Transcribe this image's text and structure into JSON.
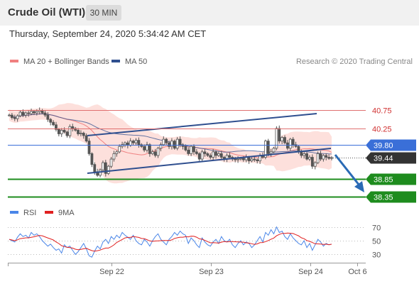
{
  "header": {
    "title": "Crude Oil (WTI)",
    "period": "30 MIN",
    "datetime": "Thursday, September 24, 2020 5:34:42 AM CET"
  },
  "legend": {
    "items": [
      {
        "label": "MA 20 + Bollinger Bands",
        "color": "#f08080"
      },
      {
        "label": "MA 50",
        "color": "#2f4f8f"
      }
    ],
    "credit": "Research © 2020 Trading Central"
  },
  "colors": {
    "candle": "#555555",
    "band_fill": "#fde0dc",
    "ma20": "#f08080",
    "ma50": "#2f4f8f",
    "channel": "#2f4f8f",
    "resistance": "#e07070",
    "pivot": "#3a6fd8",
    "support": "#1e8c1e",
    "current": "#333333",
    "arrow": "#2a6ab5",
    "rsi": "#4a86e8",
    "rsi_ma": "#e02020"
  },
  "chart_data": {
    "type": "candlestick",
    "ylim": [
      38.2,
      41.35
    ],
    "price_levels": [
      {
        "value": 40.75,
        "label": "40.75",
        "kind": "resistance"
      },
      {
        "value": 40.25,
        "label": "40.25",
        "kind": "resistance"
      },
      {
        "value": 39.8,
        "label": "39.80",
        "kind": "pivot"
      },
      {
        "value": 39.44,
        "label": "39.44",
        "kind": "current"
      },
      {
        "value": 38.85,
        "label": "38.85",
        "kind": "support"
      },
      {
        "value": 38.35,
        "label": "38.35",
        "kind": "support"
      }
    ],
    "x_tick_labels": [
      "Sep 22",
      "Sep 23",
      "Sep 24",
      "Oct 6"
    ],
    "close": [
      40.62,
      40.55,
      40.52,
      40.6,
      40.7,
      40.62,
      40.68,
      40.66,
      40.72,
      40.68,
      40.72,
      40.75,
      40.68,
      40.62,
      40.5,
      40.42,
      40.35,
      40.22,
      40.1,
      40.2,
      40.15,
      40.05,
      40.3,
      40.25,
      40.2,
      40.1,
      40.12,
      40.05,
      39.9,
      39.55,
      39.25,
      39.05,
      38.95,
      39.1,
      39.3,
      39.0,
      39.2,
      39.4,
      39.55,
      39.6,
      39.75,
      39.8,
      39.85,
      39.78,
      39.9,
      39.85,
      39.92,
      39.8,
      39.75,
      39.65,
      39.8,
      39.55,
      39.6,
      39.5,
      39.7,
      39.8,
      39.95,
      39.85,
      39.75,
      39.9,
      39.7,
      39.95,
      39.8,
      39.75,
      39.65,
      39.55,
      39.75,
      39.6,
      39.55,
      39.4,
      39.6,
      39.55,
      39.5,
      39.45,
      39.6,
      39.5,
      39.55,
      39.45,
      39.4,
      39.5,
      39.45,
      39.4,
      39.38,
      39.4,
      39.42,
      39.38,
      39.45,
      39.35,
      39.4,
      39.38,
      39.35,
      39.5,
      39.45,
      39.9,
      39.55,
      39.6,
      39.7,
      40.25,
      39.9,
      40.0,
      39.85,
      39.7,
      39.95,
      39.8,
      39.75,
      39.6,
      39.5,
      39.55,
      39.4,
      39.45,
      39.2,
      39.3,
      39.55,
      39.4,
      39.5,
      39.45,
      39.42,
      39.44
    ],
    "rsi": [
      52,
      50,
      48,
      55,
      60,
      56,
      58,
      54,
      62,
      58,
      60,
      56,
      50,
      46,
      42,
      45,
      40,
      36,
      38,
      32,
      44,
      40,
      42,
      36,
      30,
      34,
      40,
      46,
      38,
      28,
      26,
      35,
      42,
      38,
      48,
      52,
      46,
      56,
      52,
      58,
      54,
      62,
      58,
      55,
      52,
      58,
      50,
      46,
      44,
      52,
      48,
      42,
      50,
      56,
      60,
      52,
      48,
      44,
      52,
      56,
      62,
      58,
      64,
      60,
      58,
      46,
      54,
      50,
      44,
      40,
      54,
      48,
      44,
      42,
      48,
      52,
      46,
      56,
      50,
      48,
      52,
      44,
      40,
      46,
      50,
      44,
      48,
      46,
      40,
      44,
      50,
      56,
      48,
      62,
      58,
      66,
      60,
      70,
      62,
      64,
      56,
      52,
      60,
      54,
      50,
      46,
      44,
      50,
      40,
      46,
      36,
      44,
      52,
      48,
      42,
      46,
      44,
      45
    ],
    "rsi_ticks": [
      70,
      50,
      30
    ],
    "rsi_legend": [
      {
        "label": "RSI",
        "color": "#4a86e8"
      },
      {
        "label": "9MA",
        "color": "#e02020"
      }
    ]
  }
}
